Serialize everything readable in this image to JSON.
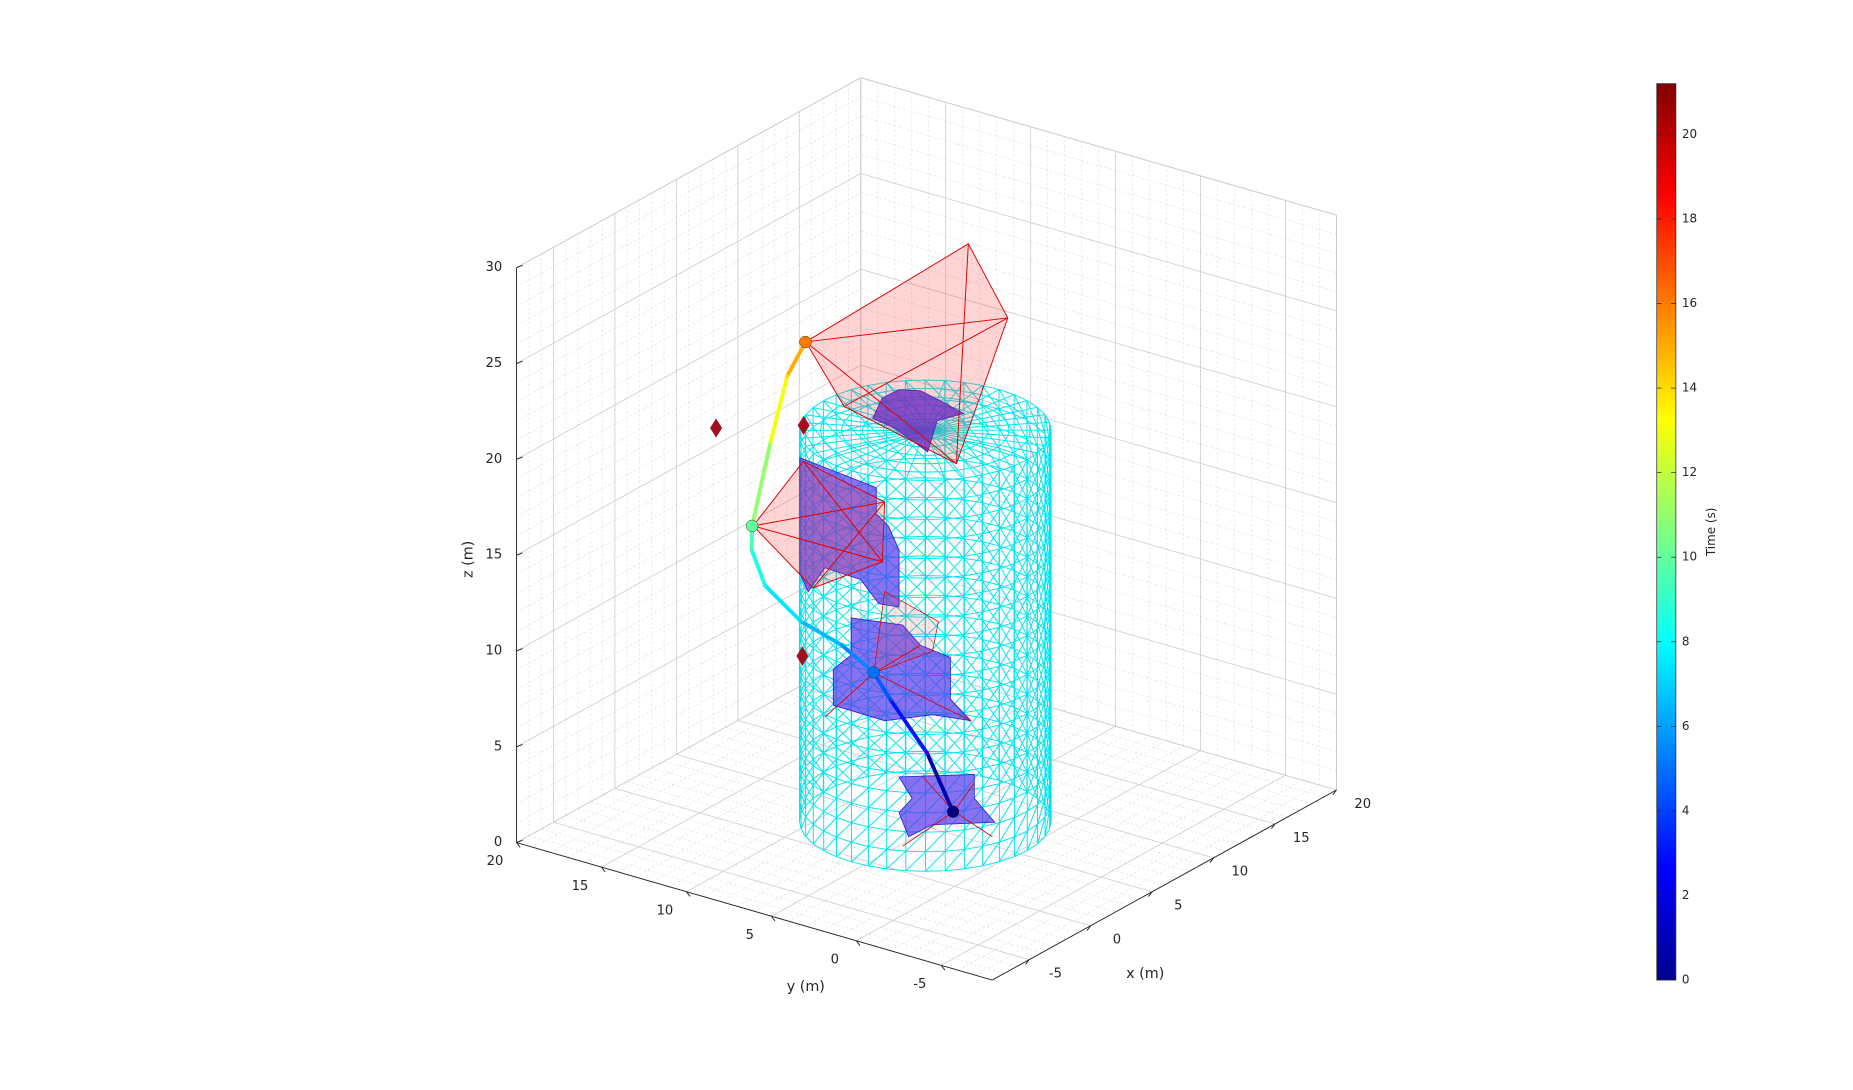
{
  "chart_data": {
    "type": "line3d",
    "xlabel": "x (m)",
    "ylabel": "y (m)",
    "zlabel": "z (m)",
    "xlim": [
      -8,
      20
    ],
    "ylim": [
      -8,
      20
    ],
    "zlim": [
      0,
      30
    ],
    "xticks": [
      -5,
      0,
      5,
      10,
      15,
      20
    ],
    "yticks": [
      -5,
      0,
      5,
      10,
      15,
      20
    ],
    "zticks": [
      0,
      5,
      10,
      15,
      20,
      25,
      30
    ],
    "grid": true,
    "trajectory": {
      "time": [
        0,
        2,
        4,
        5,
        6,
        7,
        8,
        9,
        10,
        12,
        14,
        16
      ],
      "x": [
        0.7,
        0.1,
        -0.4,
        -0.1,
        -0.2,
        -0.9,
        -1.2,
        -0.9,
        -1.0,
        -0.2,
        0.2,
        0.3
      ],
      "y": [
        0.6,
        1.7,
        3.5,
        4.7,
        6.5,
        8.4,
        10.3,
        11.3,
        11.2,
        10.7,
        10.0,
        9.0
      ],
      "z": [
        3.5,
        6.5,
        9,
        10,
        11,
        12,
        13.5,
        15,
        16.3,
        20.5,
        24,
        26
      ]
    },
    "points": {
      "x": [
        -3.1,
        -0.4,
        -0.5
      ],
      "y": [
        11.8,
        8.6,
        8.6
      ],
      "z": [
        22,
        22,
        10
      ],
      "color": "#a0101e"
    },
    "colorbar": {
      "label": "Time (s)",
      "lim": [
        0,
        21.2
      ],
      "ticks": [
        0,
        2,
        4,
        6,
        8,
        10,
        12,
        14,
        16,
        18,
        20
      ],
      "colormap": "jet"
    }
  }
}
